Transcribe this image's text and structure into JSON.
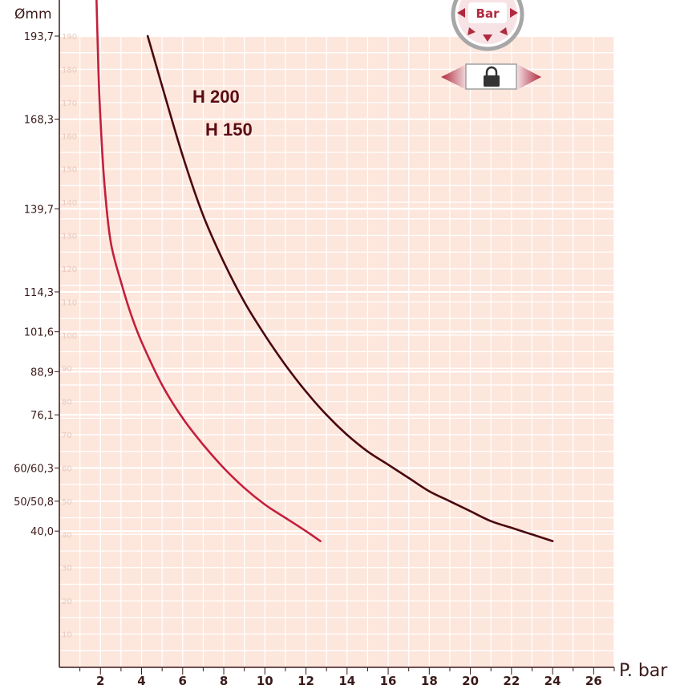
{
  "chart_data": {
    "type": "line",
    "ylabel": "Ømm",
    "xlabel": "P. bar",
    "xlim": [
      0,
      27
    ],
    "ylim": [
      0,
      190
    ],
    "x_ticks": [
      2,
      4,
      6,
      8,
      10,
      12,
      14,
      16,
      18,
      20,
      22,
      24,
      26
    ],
    "inner_y_ticks": [
      10,
      20,
      30,
      40,
      50,
      60,
      70,
      80,
      90,
      100,
      110,
      120,
      130,
      140,
      150,
      160,
      170,
      180,
      190
    ],
    "diameter_ticks": [
      {
        "label": "193,7",
        "value": 190
      },
      {
        "label": "168,3",
        "value": 165
      },
      {
        "label": "139,7",
        "value": 138
      },
      {
        "label": "114,3",
        "value": 113
      },
      {
        "label": "101,6",
        "value": 101
      },
      {
        "label": "88,9",
        "value": 89
      },
      {
        "label": "76,1",
        "value": 76
      },
      {
        "label": "60/60,3",
        "value": 60
      },
      {
        "label": "50/50,8",
        "value": 50
      },
      {
        "label": "40,0",
        "value": 41
      }
    ],
    "grid": true,
    "series": [
      {
        "name": "H 150",
        "color": "#c2203d",
        "x": [
          1.75,
          1.9,
          2.0,
          2.2,
          2.5,
          3.0,
          3.5,
          4.0,
          5.0,
          6.0,
          7.0,
          8.0,
          9.0,
          10.0,
          11.0,
          12.0,
          12.7
        ],
        "y": [
          215,
          180,
          165,
          145,
          128,
          116,
          106,
          98,
          85,
          75,
          67,
          60,
          54,
          49,
          45,
          41,
          38
        ]
      },
      {
        "name": "H 200",
        "color": "#4a0710",
        "x": [
          4.3,
          5.0,
          6.0,
          7.0,
          8.0,
          9.0,
          10.0,
          11.0,
          12.0,
          13.0,
          14.0,
          15.0,
          16.0,
          17.0,
          18.0,
          19.0,
          20.0,
          21.0,
          22.0,
          23.0,
          24.0
        ],
        "y": [
          190,
          175,
          154,
          136,
          122,
          110,
          100,
          91,
          83,
          76,
          70,
          65,
          61,
          57,
          53,
          50,
          47,
          44,
          42,
          40,
          38
        ]
      }
    ]
  },
  "series_labels": [
    "H 200",
    "H 150"
  ],
  "badge": {
    "label": "Bar",
    "icon": "pressure-badge-icon"
  },
  "lock_icon": "lock-icon",
  "colors": {
    "plot_bg": "#fde6dc",
    "grid": "#ffffff",
    "axis": "#3a1a1a",
    "accent": "#b02a3f"
  }
}
